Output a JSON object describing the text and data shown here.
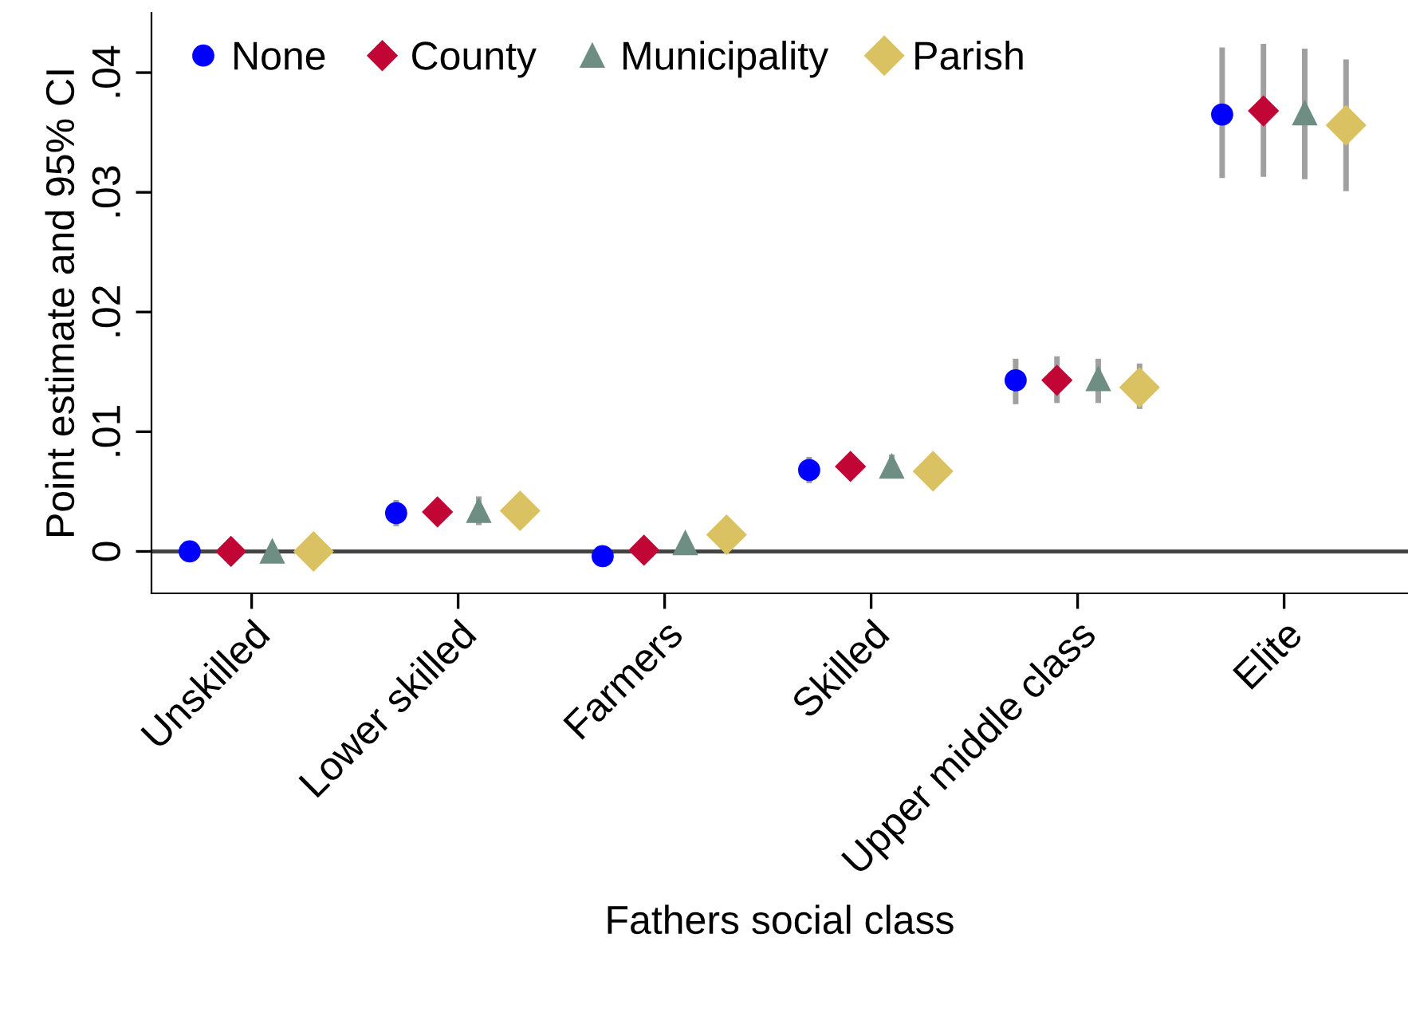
{
  "chart_data": {
    "type": "scatter",
    "xlabel": "Fathers social class",
    "ylabel": "Point estimate and 95% CI",
    "categories": [
      "Unskilled",
      "Lower skilled",
      "Farmers",
      "Skilled",
      "Upper middle class",
      "Elite"
    ],
    "ylim": [
      -0.0035,
      0.045
    ],
    "yticks": [
      0,
      {
        "value": 0.01,
        "label": ".01"
      },
      {
        "value": 0.02,
        "label": ".02"
      },
      {
        "value": 0.03,
        "label": ".03"
      },
      {
        "value": 0.04,
        "label": ".04"
      }
    ],
    "grid": false,
    "legend": "top left",
    "ref_lines": [
      {
        "axis": "y",
        "value": 0,
        "color": "#444444"
      }
    ],
    "series": [
      {
        "name": "None",
        "color": "#0000ff",
        "marker": "circle",
        "values": [
          0,
          0.0032,
          -0.0004,
          0.0068,
          0.0143,
          0.0365
        ],
        "errors": [
          null,
          0.0011,
          null,
          0.0011,
          [
            0.0123,
            0.0161
          ],
          [
            0.0312,
            0.0421
          ]
        ]
      },
      {
        "name": "County",
        "color": "#c10534",
        "marker": "diamond",
        "values": [
          0,
          0.0033,
          0.0001,
          0.0071,
          0.0143,
          0.0368
        ],
        "errors": [
          null,
          null,
          null,
          null,
          [
            0.0124,
            0.0163
          ],
          [
            0.0313,
            0.0424
          ]
        ]
      },
      {
        "name": "Municipality",
        "color": "#6e8e84",
        "marker": "triangle",
        "values": [
          0,
          0.0034,
          0.0007,
          0.0071,
          0.0144,
          0.0366
        ],
        "errors": [
          null,
          0.0012,
          null,
          0.001,
          [
            0.0124,
            0.0161
          ],
          [
            0.0311,
            0.042
          ]
        ]
      },
      {
        "name": "Parish",
        "color": "#dac263",
        "marker": "diamond",
        "values": [
          0,
          0.0034,
          0.0014,
          0.0067,
          0.0137,
          0.0356
        ],
        "errors": [
          null,
          null,
          null,
          null,
          [
            0.0119,
            0.0157
          ],
          [
            0.0301,
            0.0411
          ]
        ]
      }
    ]
  }
}
